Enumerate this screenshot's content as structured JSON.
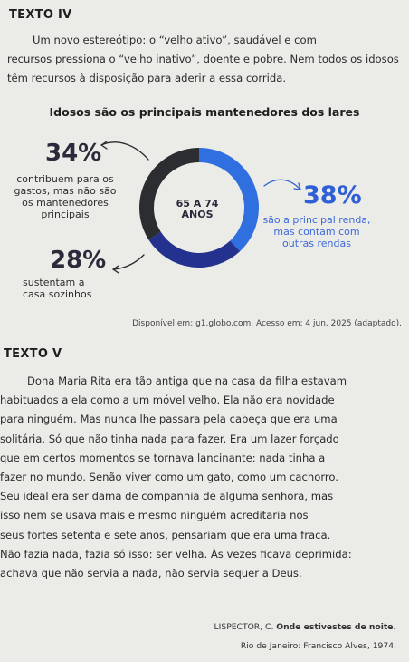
{
  "texto4": {
    "title": "TEXTO IV",
    "intro_line1": "Um novo estereótipo: o “velho ativo”, saudável e com",
    "intro_line2": "recursos pressiona o “velho inativo”, doente e pobre. Nem todos",
    "intro_line3": "os idosos têm recursos à disposição para aderir a essa corrida."
  },
  "infographic": {
    "title": "Idosos são os principais mantenedores dos lares",
    "center_line1": "65 A 74",
    "center_line2": "ANOS",
    "pct34": "34%",
    "cap34_l1": "contribuem para os",
    "cap34_l2": "gastos, mas não são",
    "cap34_l3": "os mantenedores",
    "cap34_l4": "principais",
    "pct28": "28%",
    "cap28_l1": "sustentam a",
    "cap28_l2": "casa sozinhos",
    "pct38": "38%",
    "cap38_l1": "são a principal renda,",
    "cap38_l2": "mas contam com",
    "cap38_l3": "outras rendas",
    "colors": {
      "dark": "#2b2d30",
      "navy": "#25318f",
      "blue": "#2f6fe0"
    },
    "source": "Disponível em: g1.globo.com. Acesso em: 4 jun. 2025 (adaptado)."
  },
  "chart_data": {
    "type": "pie",
    "title": "Idosos são os principais mantenedores dos lares",
    "categories": [
      "contribuem para os gastos, mas não são os mantenedores principais",
      "sustentam a casa sozinhos",
      "são a principal renda, mas contam com outras rendas"
    ],
    "values": [
      34,
      28,
      38
    ]
  },
  "texto5": {
    "title": "TEXTO V",
    "lines": [
      "Dona Maria Rita era tão antiga que na casa da filha estavam",
      "habituados a ela como a um móvel velho. Ela não era novidade",
      "para ninguém. Mas nunca lhe passara pela cabeça que era uma",
      "solitária. Só que não tinha nada para fazer. Era um lazer forçado",
      "que em certos momentos se tornava lancinante: nada tinha a",
      "fazer no mundo. Senão viver como um gato, como um cachorro.",
      "Seu ideal era ser dama de companhia de alguma senhora, mas",
      "isso nem se usava mais e mesmo ninguém acreditaria nos",
      "seus fortes setenta e sete anos, pensariam que era uma fraca.",
      "Não fazia nada, fazia só isso: ser velha. Às vezes ficava deprimida:",
      "achava que não servia a nada, não servia sequer a Deus."
    ],
    "ref_author": "LISPECTOR, C.",
    "ref_work": "Onde estivestes de noite.",
    "ref_place": "Rio de Janeiro: Francisco Alves, 1974."
  }
}
